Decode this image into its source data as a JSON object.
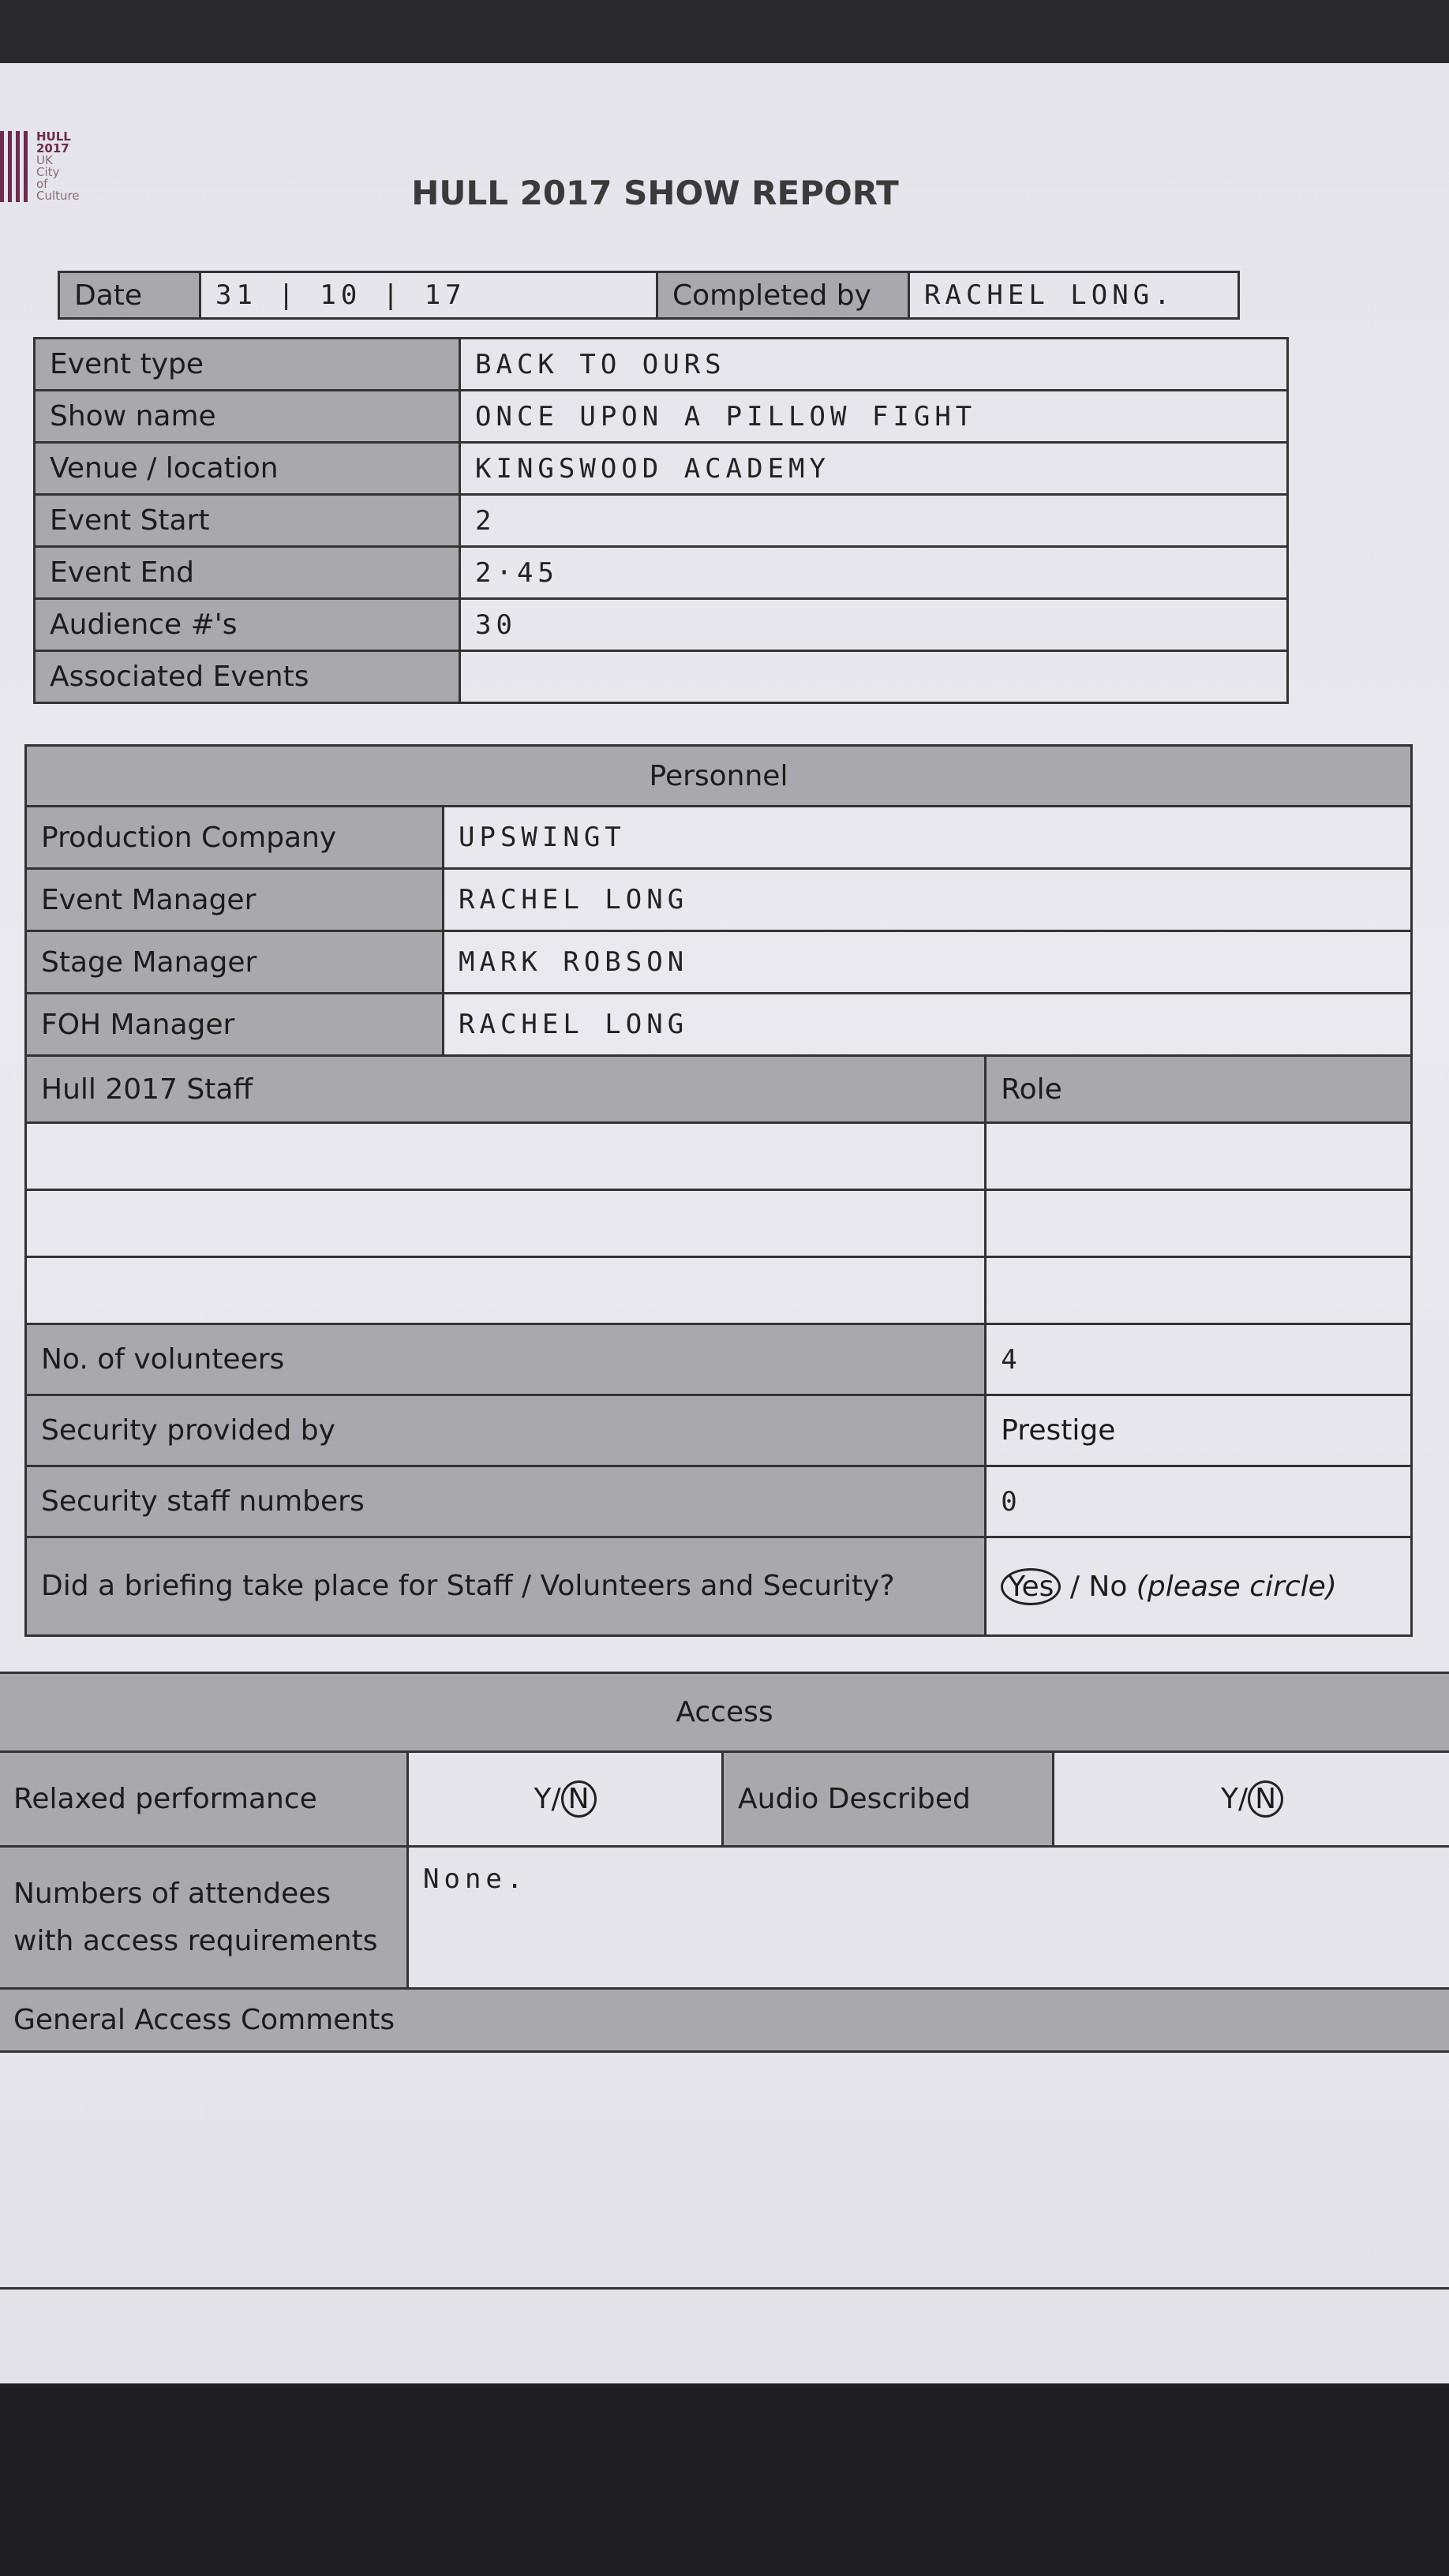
{
  "logo": {
    "line1": "HULL",
    "line2": "2017",
    "line3": "UK",
    "line4": "City",
    "line5": "of",
    "line6": "Culture"
  },
  "title": "HULL 2017 SHOW REPORT",
  "header": {
    "date_label": "Date",
    "date_value": "31 | 10 | 17",
    "completed_label": "Completed by",
    "completed_value": "RACHEL LONG."
  },
  "event": [
    {
      "label": "Event type",
      "value": "BACK TO OURS"
    },
    {
      "label": "Show name",
      "value": "ONCE UPON A PILLOW FIGHT"
    },
    {
      "label": "Venue / location",
      "value": "KINGSWOOD ACADEMY"
    },
    {
      "label": "Event Start",
      "value": "2"
    },
    {
      "label": "Event End",
      "value": "2·45"
    },
    {
      "label": "Audience #'s",
      "value": "30"
    },
    {
      "label": "Associated Events",
      "value": ""
    }
  ],
  "personnel": {
    "title": "Personnel",
    "rows": [
      {
        "label": "Production Company",
        "value": "UPSWINGT"
      },
      {
        "label": "Event Manager",
        "value": "RACHEL LONG"
      },
      {
        "label": "Stage Manager",
        "value": "MARK ROBSON"
      },
      {
        "label": "FOH Manager",
        "value": "RACHEL LONG"
      }
    ],
    "staff_header": "Hull 2017 Staff",
    "role_header": "Role",
    "volunteers_label": "No. of volunteers",
    "volunteers_value": "4",
    "security_label": "Security provided by",
    "security_value": "Prestige",
    "security_numbers_label": "Security staff numbers",
    "security_numbers_value": "0",
    "briefing_label": "Did a briefing take place for Staff / Volunteers and Security?",
    "briefing_yes": "Yes",
    "briefing_rest": "/ No",
    "briefing_note": "(please circle)"
  },
  "access": {
    "title": "Access",
    "relaxed_label": "Relaxed performance",
    "relaxed_y": "Y/",
    "relaxed_n": "N",
    "audio_label": "Audio Described",
    "audio_y": "Y/",
    "audio_n": "N",
    "numbers_label": "Numbers of attendees with access requirements",
    "numbers_value": "None.",
    "comments_label": "General Access Comments"
  }
}
